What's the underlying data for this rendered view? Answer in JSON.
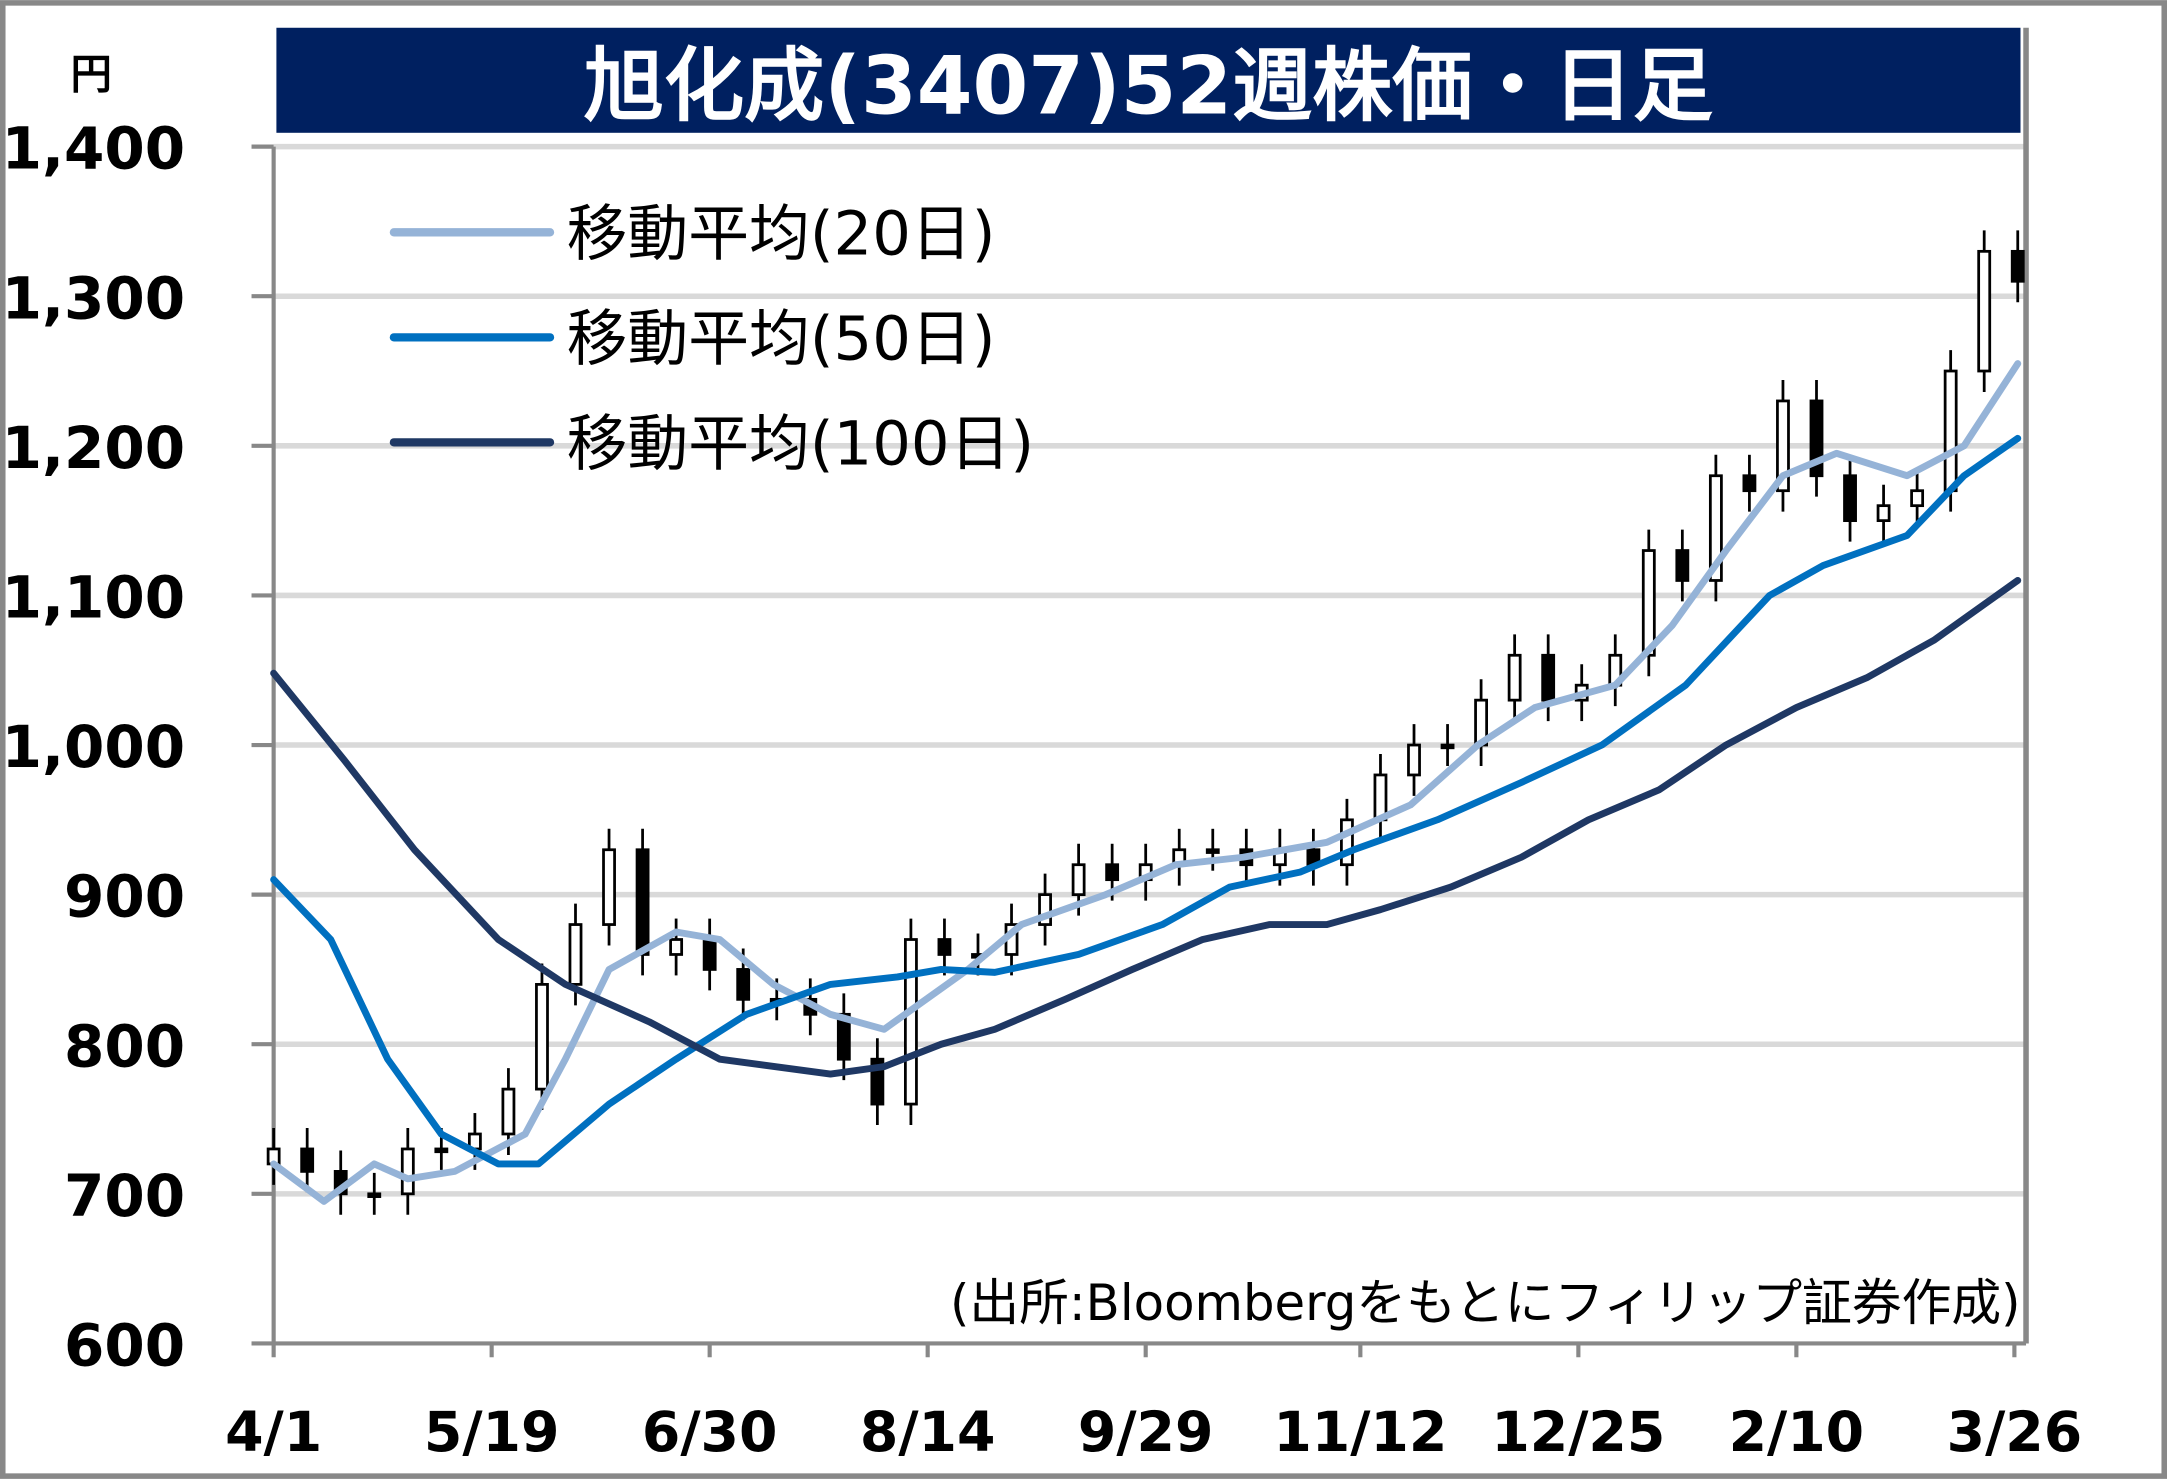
{
  "chart_data": {
    "type": "candlestick",
    "title": "旭化成(3407)52週株価・日足",
    "ylabel": "円",
    "ylim": [
      600,
      1400
    ],
    "yticks": [
      600,
      700,
      800,
      900,
      1000,
      1100,
      1200,
      1300,
      1400
    ],
    "ytick_labels": [
      "600",
      "700",
      "800",
      "900",
      "1,000",
      "1,100",
      "1,200",
      "1,300",
      "1,400"
    ],
    "xlim_weeks": [
      0,
      52
    ],
    "xticks": [
      {
        "label": "4/1",
        "week": 0
      },
      {
        "label": "5/19",
        "week": 6.5
      },
      {
        "label": "6/30",
        "week": 13
      },
      {
        "label": "8/14",
        "week": 19.5
      },
      {
        "label": "9/29",
        "week": 26
      },
      {
        "label": "11/12",
        "week": 32.4
      },
      {
        "label": "12/25",
        "week": 38.9
      },
      {
        "label": "2/10",
        "week": 45.4
      },
      {
        "label": "3/26",
        "week": 51.9
      }
    ],
    "grid": true,
    "price_closes_weekly": [
      730,
      715,
      700,
      700,
      730,
      730,
      740,
      770,
      840,
      880,
      930,
      860,
      870,
      850,
      830,
      830,
      820,
      790,
      760,
      870,
      860,
      860,
      880,
      900,
      920,
      910,
      920,
      930,
      930,
      920,
      930,
      920,
      950,
      980,
      1000,
      1000,
      1030,
      1060,
      1030,
      1040,
      1060,
      1130,
      1110,
      1180,
      1170,
      1230,
      1180,
      1150,
      1160,
      1170,
      1250,
      1330,
      1310
    ],
    "series": [
      {
        "name": "移動平均(20日)",
        "color": "#95b3d7",
        "points": [
          [
            0,
            720
          ],
          [
            1.5,
            695
          ],
          [
            3,
            720
          ],
          [
            4,
            710
          ],
          [
            5.4,
            715
          ],
          [
            7.5,
            740
          ],
          [
            8.7,
            790
          ],
          [
            10,
            850
          ],
          [
            12,
            875
          ],
          [
            13.3,
            870
          ],
          [
            14.9,
            840
          ],
          [
            16.6,
            820
          ],
          [
            18.2,
            810
          ],
          [
            20.7,
            850
          ],
          [
            22.3,
            880
          ],
          [
            24.8,
            900
          ],
          [
            26.9,
            920
          ],
          [
            28.9,
            925
          ],
          [
            31.4,
            935
          ],
          [
            33.9,
            960
          ],
          [
            35.9,
            1000
          ],
          [
            37.6,
            1025
          ],
          [
            40,
            1040
          ],
          [
            41.7,
            1080
          ],
          [
            43.3,
            1130
          ],
          [
            45,
            1180
          ],
          [
            46.6,
            1195
          ],
          [
            48.7,
            1180
          ],
          [
            50.4,
            1200
          ],
          [
            52,
            1255
          ]
        ]
      },
      {
        "name": "移動平均(50日)",
        "color": "#0070c0",
        "points": [
          [
            0,
            910
          ],
          [
            1.7,
            870
          ],
          [
            3.4,
            790
          ],
          [
            5,
            740
          ],
          [
            6.7,
            720
          ],
          [
            7.9,
            720
          ],
          [
            10,
            760
          ],
          [
            12,
            790
          ],
          [
            14.1,
            820
          ],
          [
            16.6,
            840
          ],
          [
            18.6,
            845
          ],
          [
            19.9,
            850
          ],
          [
            21.5,
            848
          ],
          [
            24,
            860
          ],
          [
            26.5,
            880
          ],
          [
            28.5,
            905
          ],
          [
            30.6,
            915
          ],
          [
            32.2,
            930
          ],
          [
            34.7,
            950
          ],
          [
            37.2,
            975
          ],
          [
            39.6,
            1000
          ],
          [
            42.1,
            1040
          ],
          [
            44.6,
            1100
          ],
          [
            46.2,
            1120
          ],
          [
            48.7,
            1140
          ],
          [
            50.4,
            1180
          ],
          [
            52,
            1205
          ]
        ]
      },
      {
        "name": "移動平均(100日)",
        "color": "#1f3864",
        "points": [
          [
            0,
            1048
          ],
          [
            2.1,
            990
          ],
          [
            4.2,
            930
          ],
          [
            6.7,
            870
          ],
          [
            8.7,
            840
          ],
          [
            11.2,
            815
          ],
          [
            13.3,
            790
          ],
          [
            16.6,
            780
          ],
          [
            18.2,
            785
          ],
          [
            19.9,
            800
          ],
          [
            21.5,
            810
          ],
          [
            23.6,
            830
          ],
          [
            25.6,
            850
          ],
          [
            27.7,
            870
          ],
          [
            29.7,
            880
          ],
          [
            31.4,
            880
          ],
          [
            33,
            890
          ],
          [
            35.1,
            905
          ],
          [
            37.2,
            925
          ],
          [
            39.2,
            950
          ],
          [
            41.3,
            970
          ],
          [
            43.3,
            1000
          ],
          [
            45.4,
            1025
          ],
          [
            47.5,
            1045
          ],
          [
            49.5,
            1070
          ],
          [
            52,
            1110
          ]
        ]
      }
    ],
    "legend_position": "top-left",
    "annotation": "(出所:Bloombergをもとにフィリップ証券作成)"
  }
}
